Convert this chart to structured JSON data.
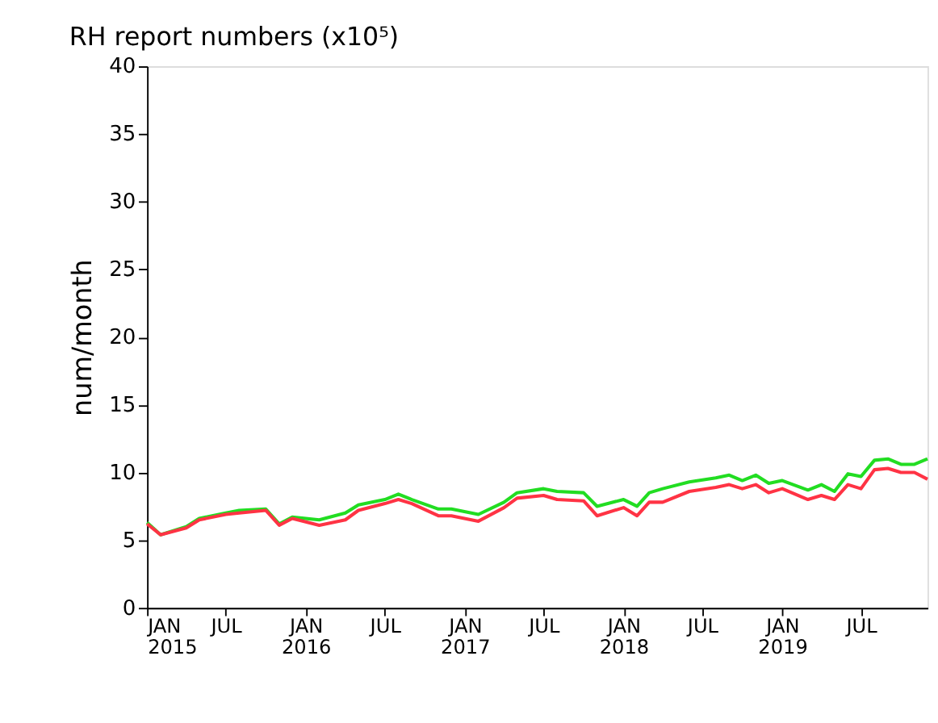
{
  "chart_data": {
    "type": "line",
    "title": "RH report numbers (x10⁵)",
    "ylabel": "num/month",
    "x": [
      "2015-01",
      "2015-02",
      "2015-04",
      "2015-05",
      "2015-07",
      "2015-08",
      "2015-10",
      "2015-11",
      "2015-12",
      "2016-02",
      "2016-04",
      "2016-05",
      "2016-07",
      "2016-08",
      "2016-09",
      "2016-11",
      "2016-12",
      "2017-02",
      "2017-04",
      "2017-05",
      "2017-07",
      "2017-08",
      "2017-10",
      "2017-11",
      "2018-01",
      "2018-02",
      "2018-03",
      "2018-04",
      "2018-06",
      "2018-08",
      "2018-09",
      "2018-10",
      "2018-11",
      "2018-12",
      "2019-01",
      "2019-03",
      "2019-04",
      "2019-05",
      "2019-06",
      "2019-07",
      "2019-08",
      "2019-09",
      "2019-10",
      "2019-11",
      "2019-12"
    ],
    "series": [
      {
        "color": "#22dd22",
        "values": [
          6.3,
          5.4,
          6.0,
          6.6,
          7.0,
          7.2,
          7.3,
          6.2,
          6.7,
          6.5,
          7.0,
          7.6,
          8.0,
          8.4,
          8.0,
          7.3,
          7.3,
          6.9,
          7.8,
          8.5,
          8.8,
          8.6,
          8.5,
          7.5,
          8.0,
          7.5,
          8.5,
          8.8,
          9.3,
          9.6,
          9.8,
          9.4,
          9.8,
          9.2,
          9.4,
          8.7,
          9.1,
          8.6,
          9.9,
          9.7,
          10.9,
          11.0,
          10.6,
          10.6,
          11.0
        ]
      },
      {
        "color": "#ff3344",
        "values": [
          6.2,
          5.4,
          5.9,
          6.5,
          6.9,
          7.0,
          7.2,
          6.1,
          6.6,
          6.1,
          6.5,
          7.2,
          7.7,
          8.0,
          7.7,
          6.8,
          6.8,
          6.4,
          7.4,
          8.1,
          8.3,
          8.0,
          7.9,
          6.8,
          7.4,
          6.8,
          7.8,
          7.8,
          8.6,
          8.9,
          9.1,
          8.8,
          9.1,
          8.5,
          8.8,
          8.0,
          8.3,
          8.0,
          9.1,
          8.8,
          10.2,
          10.3,
          10.0,
          10.0,
          9.5
        ]
      }
    ],
    "xlim": [
      "2015-01",
      "2019-12"
    ],
    "xticks": [
      {
        "value": "2015-01",
        "label": "JAN\n2015"
      },
      {
        "value": "2015-07",
        "label": "JUL"
      },
      {
        "value": "2016-01",
        "label": "JAN\n2016"
      },
      {
        "value": "2016-07",
        "label": "JUL"
      },
      {
        "value": "2017-01",
        "label": "JAN\n2017"
      },
      {
        "value": "2017-07",
        "label": "JUL"
      },
      {
        "value": "2018-01",
        "label": "JAN\n2018"
      },
      {
        "value": "2018-07",
        "label": "JUL"
      },
      {
        "value": "2019-01",
        "label": "JAN\n2019"
      },
      {
        "value": "2019-07",
        "label": "JUL"
      }
    ],
    "ylim": [
      0,
      40
    ],
    "yticks": [
      0,
      5,
      10,
      15,
      20,
      25,
      30,
      35,
      40
    ],
    "grid": false,
    "marker": "none",
    "line_style": "solid"
  }
}
